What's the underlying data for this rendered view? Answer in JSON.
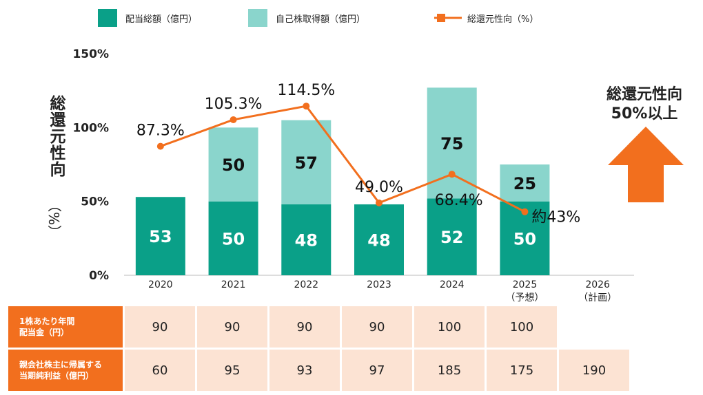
{
  "legend": {
    "dividends": "配当総額（億円）",
    "buyback": "自己株取得額（億円）",
    "ratio": "総還元性向（%）"
  },
  "colors": {
    "dividends": "#0aa088",
    "buyback": "#8ad5cc",
    "ratio": "#f26f1e",
    "table_head": "#f26f1e",
    "table_cell": "#fce3d3"
  },
  "y_axis": {
    "label": "総還元性向",
    "unit": "（%）"
  },
  "target": {
    "line1": "総還元性向",
    "line2": "50%以上",
    "arrow_icon": "up-arrow-icon"
  },
  "chart_data": {
    "type": "bar",
    "stacked": true,
    "categories": [
      "2020",
      "2021",
      "2022",
      "2023",
      "2024",
      "2025",
      "2026"
    ],
    "category_sublabels": [
      "",
      "",
      "",
      "",
      "",
      "（予想）",
      "（計画）"
    ],
    "series": [
      {
        "name": "配当総額（億円）",
        "values": [
          53,
          50,
          48,
          48,
          52,
          50,
          null
        ]
      },
      {
        "name": "自己株取得額（億円）",
        "values": [
          0,
          50,
          57,
          0,
          75,
          25,
          null
        ]
      }
    ],
    "line_series": {
      "name": "総還元性向（%）",
      "values": [
        87.3,
        105.3,
        114.5,
        49.0,
        68.4,
        43.0
      ],
      "labels": [
        "87.3%",
        "105.3%",
        "114.5%",
        "49.0%",
        "68.4%",
        "約43%"
      ]
    },
    "yticks": [
      "0%",
      "50%",
      "100%",
      "150%"
    ],
    "ylim": [
      0,
      150
    ]
  },
  "table": {
    "rows": [
      {
        "header_line1": "1株あたり年間",
        "header_line2": "配当金（円）",
        "values": [
          "90",
          "90",
          "90",
          "90",
          "100",
          "100",
          ""
        ]
      },
      {
        "header_line1": "親会社株主に帰属する",
        "header_line2": "当期純利益（億円）",
        "values": [
          "60",
          "95",
          "93",
          "97",
          "185",
          "175",
          "190"
        ]
      }
    ]
  }
}
